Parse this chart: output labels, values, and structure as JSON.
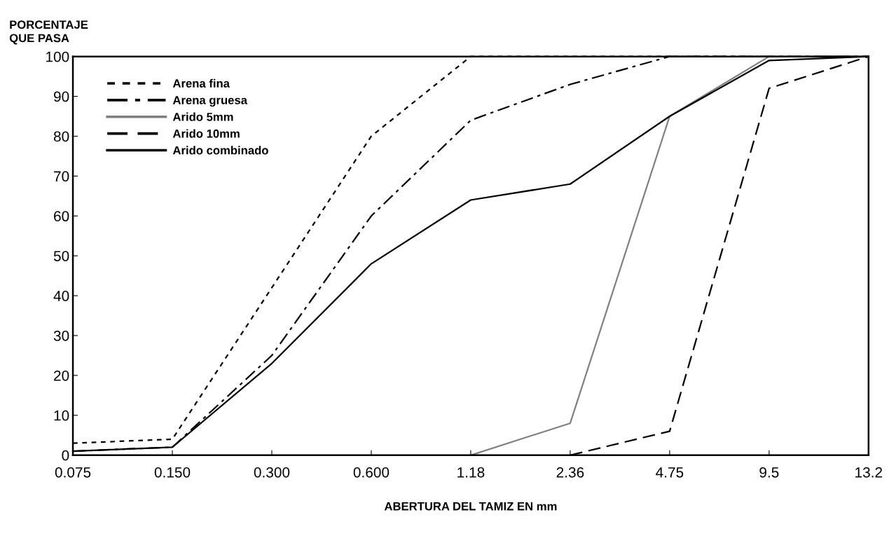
{
  "chart_data": {
    "type": "line",
    "ylabel": "PORCENTAJE\nQUE PASA",
    "xlabel": "ABERTURA DEL TAMIZ EN mm",
    "categories": [
      "0.075",
      "0.150",
      "0.300",
      "0.600",
      "1.18",
      "2.36",
      "4.75",
      "9.5",
      "13.2"
    ],
    "series": [
      {
        "name": "Arena fina",
        "color": "#000000",
        "line_style": "dotted",
        "values": [
          3,
          4,
          42,
          80,
          100,
          100,
          100,
          100,
          100
        ]
      },
      {
        "name": "Arena gruesa",
        "color": "#000000",
        "line_style": "dashdot",
        "values": [
          1,
          2,
          25,
          60,
          84,
          93,
          100,
          100,
          100
        ]
      },
      {
        "name": "Arido 5mm",
        "color": "#808080",
        "line_style": "solid",
        "values": [
          null,
          null,
          null,
          null,
          0,
          8,
          85,
          100,
          100
        ]
      },
      {
        "name": "Arido 10mm",
        "color": "#000000",
        "line_style": "dashed",
        "values": [
          null,
          null,
          null,
          null,
          null,
          0,
          6,
          92,
          100
        ]
      },
      {
        "name": "Arido combinado",
        "color": "#000000",
        "line_style": "solid",
        "values": [
          1,
          2,
          23,
          48,
          64,
          68,
          85,
          99,
          100
        ]
      }
    ],
    "ylim": [
      0,
      100
    ],
    "yticks": [
      0,
      10,
      20,
      30,
      40,
      50,
      60,
      70,
      80,
      90,
      100
    ],
    "grid": false,
    "legend": "top left",
    "marker": "none"
  }
}
